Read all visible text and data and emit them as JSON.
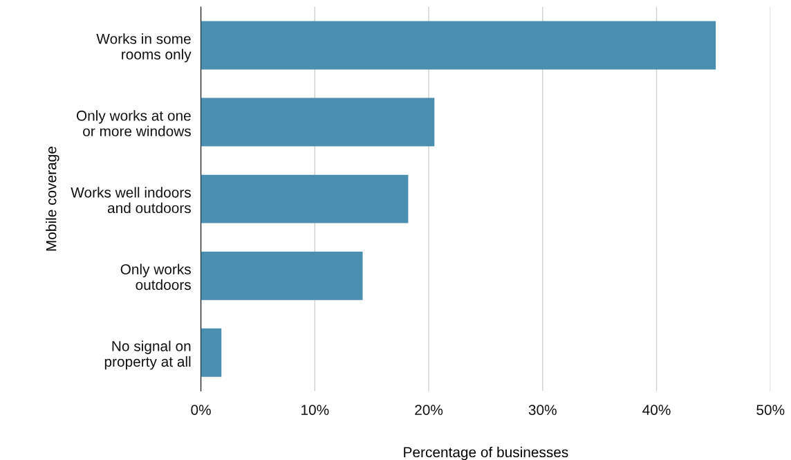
{
  "chart_data": {
    "type": "bar",
    "orientation": "horizontal",
    "xlabel": "Percentage of businesses",
    "ylabel": "Mobile coverage",
    "categories": [
      "Works in some\nrooms only",
      "Only works at one\nor more windows",
      "Works well indoors\nand outdoors",
      "Only works\noutdoors",
      "No signal on\nproperty at all"
    ],
    "values": [
      45.2,
      20.5,
      18.2,
      14.2,
      1.8
    ],
    "color": "#4a8fb0",
    "xlim": [
      0,
      50
    ],
    "xticks": [
      {
        "value": 0,
        "label": "0%"
      },
      {
        "value": 10,
        "label": "10%"
      },
      {
        "value": 20,
        "label": "20%"
      },
      {
        "value": 30,
        "label": "30%"
      },
      {
        "value": 40,
        "label": "40%"
      },
      {
        "value": 50,
        "label": "50%"
      }
    ],
    "grid": "x"
  }
}
